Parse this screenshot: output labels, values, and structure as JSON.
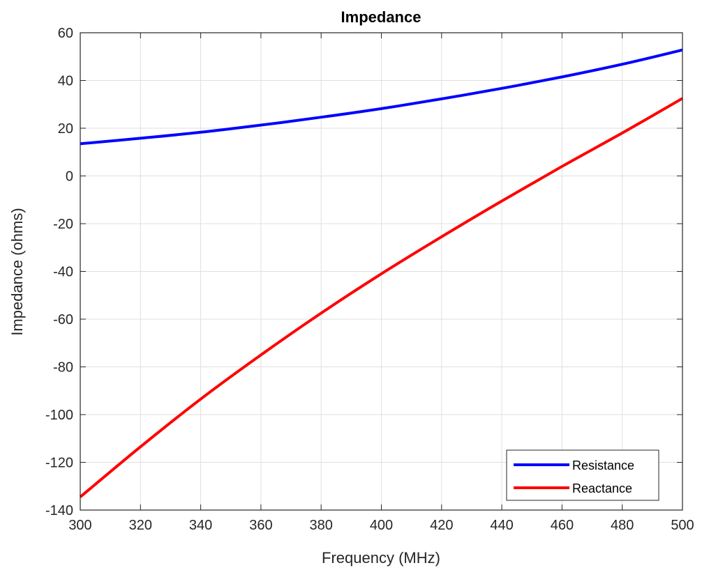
{
  "chart_data": {
    "type": "line",
    "title": "Impedance",
    "xlabel": "Frequency (MHz)",
    "ylabel": "Impedance (ohms)",
    "xlim": [
      300,
      500
    ],
    "ylim": [
      -140,
      60
    ],
    "xticks": [
      300,
      320,
      340,
      360,
      380,
      400,
      420,
      440,
      460,
      480,
      500
    ],
    "yticks": [
      60,
      40,
      20,
      0,
      -20,
      -40,
      -60,
      -80,
      -100,
      -120,
      -140
    ],
    "xtick_labels": [
      "300",
      "320",
      "340",
      "360",
      "380",
      "400",
      "420",
      "440",
      "460",
      "480",
      "500"
    ],
    "ytick_labels": [
      "60",
      "40",
      "20",
      "0",
      "-20",
      "-40",
      "-60",
      "-80",
      "-100",
      "-120",
      "-140"
    ],
    "grid": true,
    "legend_position": "bottom-right",
    "x": [
      300,
      320,
      340,
      360,
      380,
      400,
      420,
      440,
      460,
      480,
      500
    ],
    "series": [
      {
        "name": "Resistance",
        "color": "#0000ff",
        "values": [
          13.5,
          15.8,
          18.3,
          21.3,
          24.6,
          28.2,
          32.3,
          36.7,
          41.5,
          46.8,
          52.8
        ]
      },
      {
        "name": "Reactance",
        "color": "#ff0000",
        "values": [
          -134.5,
          -113.5,
          -93.5,
          -75.0,
          -57.5,
          -41.0,
          -25.5,
          -10.5,
          4.0,
          18.0,
          32.5
        ]
      }
    ]
  }
}
